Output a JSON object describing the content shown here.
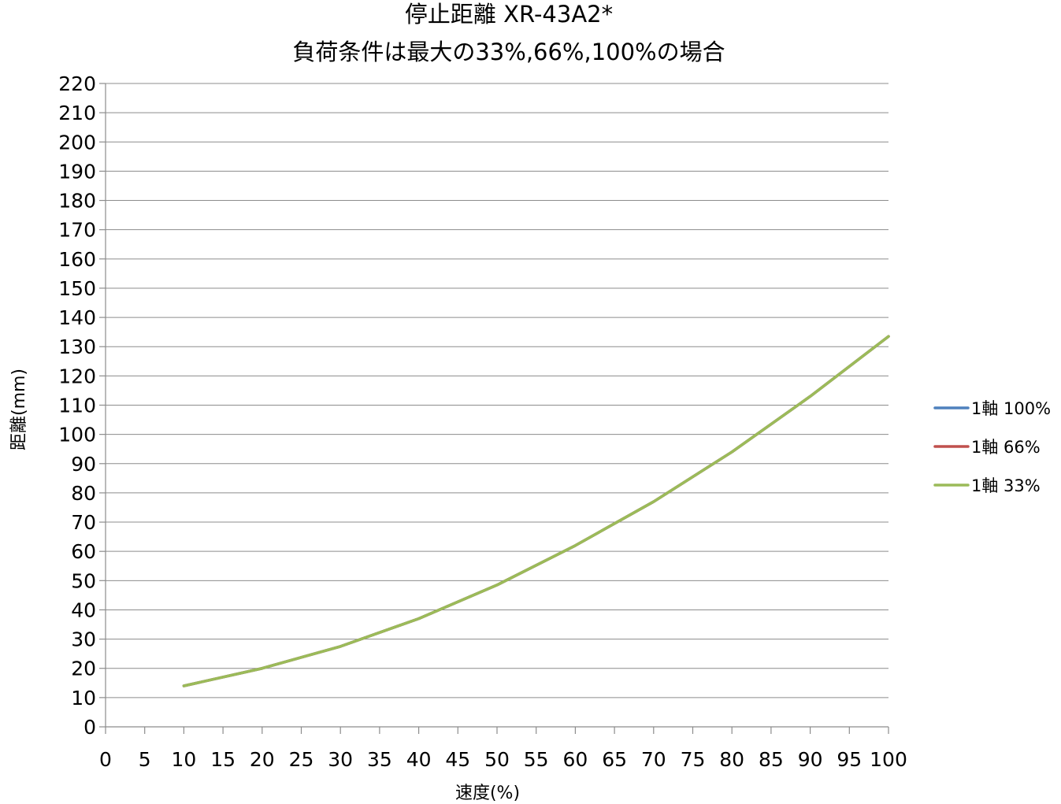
{
  "chart_data": {
    "type": "line",
    "title": "停止距離 XR-43A2*",
    "subtitle": "負荷条件は最大の33%,66%,100%の場合",
    "xlabel": "速度(%)",
    "ylabel": "距離(mm)",
    "xlim": [
      0,
      100
    ],
    "ylim": [
      0,
      220
    ],
    "x_ticks": [
      0,
      5,
      10,
      15,
      20,
      25,
      30,
      35,
      40,
      45,
      50,
      55,
      60,
      65,
      70,
      75,
      80,
      85,
      90,
      95,
      100
    ],
    "y_ticks": [
      0,
      10,
      20,
      30,
      40,
      50,
      60,
      70,
      80,
      90,
      100,
      110,
      120,
      130,
      140,
      150,
      160,
      170,
      180,
      190,
      200,
      210,
      220
    ],
    "grid": true,
    "legend_position": "right",
    "x": [
      10,
      20,
      30,
      40,
      50,
      60,
      70,
      80,
      90,
      100
    ],
    "series": [
      {
        "name": "1軸 100%",
        "color": "#4f81bd",
        "values": [
          14,
          20,
          27.5,
          37,
          48.5,
          62,
          77,
          94,
          113,
          133.5
        ]
      },
      {
        "name": "1軸 66%",
        "color": "#c0504d",
        "values": [
          14,
          20,
          27.5,
          37,
          48.5,
          62,
          77,
          94,
          113,
          133.5
        ]
      },
      {
        "name": "1軸 33%",
        "color": "#9bbb59",
        "values": [
          14,
          20,
          27.5,
          37,
          48.5,
          62,
          77,
          94,
          113,
          133.5
        ]
      }
    ]
  }
}
